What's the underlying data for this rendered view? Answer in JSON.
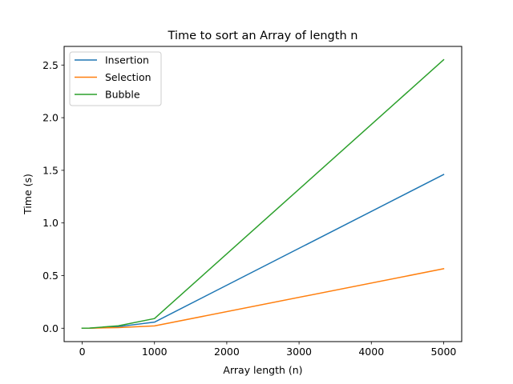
{
  "chart_data": {
    "type": "line",
    "title": "Time to sort an Array of length n",
    "xlabel": "Array length (n)",
    "ylabel": "Time (s)",
    "x": [
      0,
      100,
      500,
      1000,
      5000
    ],
    "xlim": [
      -250,
      5250
    ],
    "ylim": [
      -0.127,
      2.677
    ],
    "xticks": [
      0,
      1000,
      2000,
      3000,
      4000,
      5000
    ],
    "xtick_labels": [
      "0",
      "1000",
      "2000",
      "3000",
      "4000",
      "5000"
    ],
    "yticks": [
      0,
      0.5,
      1.0,
      1.5,
      2.0,
      2.5
    ],
    "ytick_labels": [
      "0.0",
      "0.5",
      "1.0",
      "1.5",
      "2.0",
      "2.5"
    ],
    "grid": false,
    "legend_position": "upper-left",
    "series": [
      {
        "name": "Insertion",
        "color": "#1f77b4",
        "values": [
          0.0,
          0.0006,
          0.015,
          0.058,
          1.46
        ]
      },
      {
        "name": "Selection",
        "color": "#ff7f0e",
        "values": [
          0.0,
          0.0002,
          0.006,
          0.022,
          0.565
        ]
      },
      {
        "name": "Bubble",
        "color": "#2ca02c",
        "values": [
          0.0,
          0.001,
          0.023,
          0.092,
          2.55
        ]
      }
    ]
  }
}
